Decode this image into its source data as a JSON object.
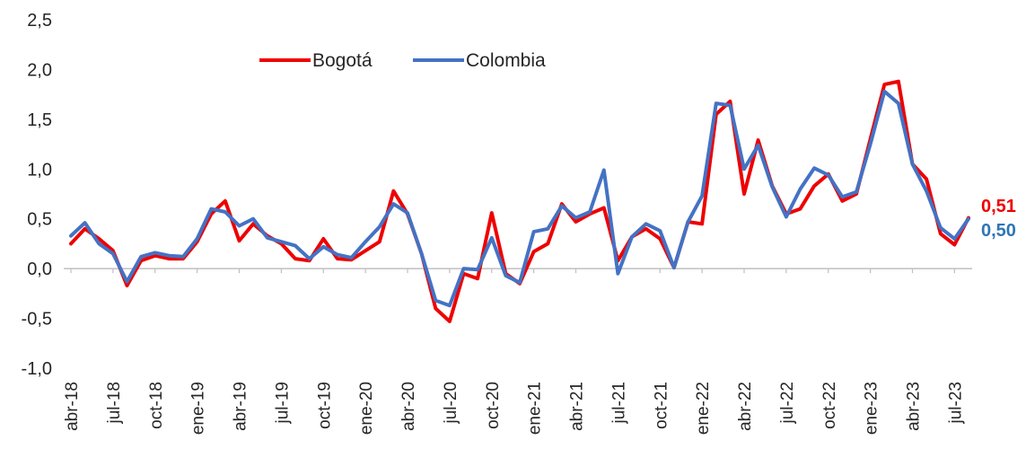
{
  "chart_data": {
    "type": "line",
    "title": "",
    "xlabel": "",
    "ylabel": "",
    "ylim": [
      -1.0,
      2.5
    ],
    "yticks": [
      "2,5",
      "2,0",
      "1,5",
      "1,0",
      "0,5",
      "0,0",
      "-0,5",
      "-1,0"
    ],
    "ytick_values": [
      2.5,
      2.0,
      1.5,
      1.0,
      0.5,
      0.0,
      -0.5,
      -1.0
    ],
    "xtick_labels": [
      "abr-18",
      "jul-18",
      "oct-18",
      "ene-19",
      "abr-19",
      "jul-19",
      "oct-19",
      "ene-20",
      "abr-20",
      "jul-20",
      "oct-20",
      "ene-21",
      "abr-21",
      "jul-21",
      "oct-21",
      "ene-22",
      "abr-22",
      "jul-22",
      "oct-22",
      "ene-23",
      "abr-23",
      "jul-23"
    ],
    "grid": false,
    "legend_position": "top-center",
    "series": [
      {
        "name": "Bogotá",
        "color": "#ee0000",
        "values": [
          0.25,
          0.4,
          0.3,
          0.18,
          -0.17,
          0.08,
          0.13,
          0.1,
          0.1,
          0.27,
          0.55,
          0.68,
          0.28,
          0.45,
          0.33,
          0.25,
          0.1,
          0.08,
          0.3,
          0.1,
          0.09,
          0.18,
          0.27,
          0.78,
          0.55,
          0.15,
          -0.4,
          -0.53,
          -0.05,
          -0.1,
          0.56,
          -0.05,
          -0.15,
          0.17,
          0.25,
          0.65,
          0.47,
          0.55,
          0.61,
          0.08,
          0.32,
          0.4,
          0.3,
          0.01,
          0.47,
          0.45,
          1.55,
          1.68,
          0.75,
          1.29,
          0.83,
          0.55,
          0.6,
          0.83,
          0.95,
          0.68,
          0.75,
          1.3,
          1.85,
          1.88,
          1.05,
          0.9,
          0.35,
          0.24,
          0.51
        ],
        "end_label": "0,51"
      },
      {
        "name": "Colombia",
        "color": "#4472c4",
        "values": [
          0.33,
          0.46,
          0.25,
          0.15,
          -0.13,
          0.12,
          0.16,
          0.13,
          0.12,
          0.3,
          0.6,
          0.57,
          0.43,
          0.5,
          0.31,
          0.27,
          0.23,
          0.1,
          0.22,
          0.14,
          0.11,
          0.27,
          0.42,
          0.65,
          0.56,
          0.15,
          -0.32,
          -0.37,
          0.0,
          -0.01,
          0.31,
          -0.07,
          -0.14,
          0.37,
          0.4,
          0.63,
          0.51,
          0.57,
          0.99,
          -0.05,
          0.32,
          0.45,
          0.38,
          0.01,
          0.47,
          0.73,
          1.66,
          1.64,
          1.0,
          1.24,
          0.82,
          0.52,
          0.8,
          1.01,
          0.94,
          0.72,
          0.77,
          1.25,
          1.78,
          1.66,
          1.05,
          0.78,
          0.41,
          0.3,
          0.5
        ],
        "end_label": "0,50"
      }
    ]
  }
}
